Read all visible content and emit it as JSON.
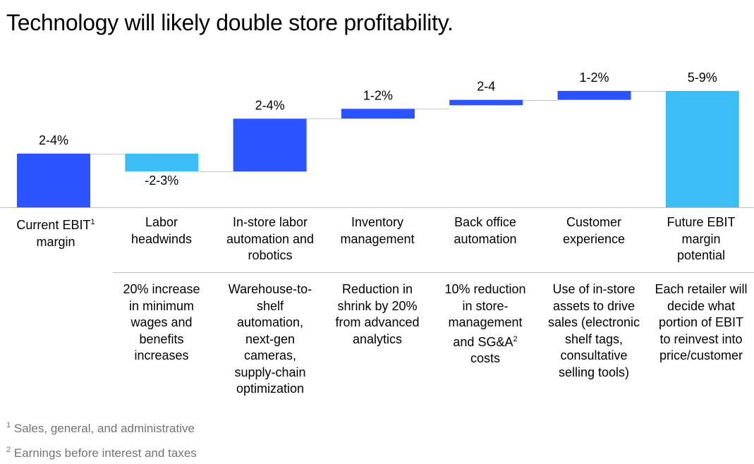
{
  "title": "Technology will likely double store profitability.",
  "chart_data": {
    "type": "waterfall",
    "unit": "% EBIT margin",
    "steps": [
      {
        "category": "Current EBIT",
        "category_line2": "margin",
        "footnote_ref": "1",
        "kind": "total",
        "start": 0,
        "end": 3,
        "label": "2-4%",
        "color": "#2b53ff"
      },
      {
        "category": "Labor",
        "category_line2": "headwinds",
        "kind": "decrease",
        "start": 3,
        "end": 2,
        "label": "-2-3%",
        "color": "#3dbdf5"
      },
      {
        "category": "In-store labor",
        "category_line2": "automation and",
        "category_line3": "robotics",
        "kind": "increase",
        "start": 2,
        "end": 4.95,
        "label": "2-4%",
        "color": "#2b53ff"
      },
      {
        "category": "Inventory",
        "category_line2": "management",
        "kind": "increase",
        "start": 4.95,
        "end": 5.5,
        "label": "1-2%",
        "color": "#2b53ff"
      },
      {
        "category": "Back office",
        "category_line2": "automation",
        "kind": "increase",
        "start": 5.7,
        "end": 6.0,
        "label": "2-4",
        "color": "#2b53ff"
      },
      {
        "category": "Customer",
        "category_line2": "experience",
        "kind": "increase",
        "start": 6.0,
        "end": 6.5,
        "label": "1-2%",
        "color": "#2b53ff"
      },
      {
        "category": "Future EBIT",
        "category_line2": "margin",
        "category_line3": "potential",
        "kind": "total",
        "start": 0,
        "end": 6.5,
        "label": "5-9%",
        "color": "#3dbdf5"
      }
    ],
    "descriptions": [
      "",
      "20% increase in minimum wages and benefits increases",
      "Warehouse-to-shelf automation, next-gen cameras, supply-chain optimization",
      "Reduction in shrink by 20% from advanced analytics",
      "10% reduction in store-management and SG&A costs",
      "Use of in-store assets to drive sales (electronic shelf tags, consultative selling tools)",
      "Each retailer will decide what portion of EBIT to reinvest into price/customer"
    ],
    "connector_color": "#c8c8c8",
    "baseline_color": "#bdbdbd"
  },
  "desc": {
    "d1": [
      "20% increase",
      "in minimum",
      "wages and",
      "benefits",
      "increases"
    ],
    "d2": [
      "Warehouse-to-",
      "shelf",
      "automation,",
      "next-gen",
      "cameras,",
      "supply-chain",
      "optimization"
    ],
    "d3": [
      "Reduction in",
      "shrink by 20%",
      "from advanced",
      "analytics"
    ],
    "d4": [
      "10% reduction",
      "in store-",
      "management",
      "and SG&A"
    ],
    "d4_ref": "2",
    "d4_last": "costs",
    "d5": [
      "Use of in-store",
      "assets to drive",
      "sales (electronic",
      "shelf tags,",
      "consultative",
      "selling tools)"
    ],
    "d6": [
      "Each retailer will",
      "decide what",
      "portion of EBIT",
      "to reinvest into",
      "price/customer"
    ]
  },
  "footnotes": [
    {
      "ref": "1",
      "text": "Sales, general, and administrative"
    },
    {
      "ref": "2",
      "text": "Earnings before interest and taxes"
    }
  ]
}
